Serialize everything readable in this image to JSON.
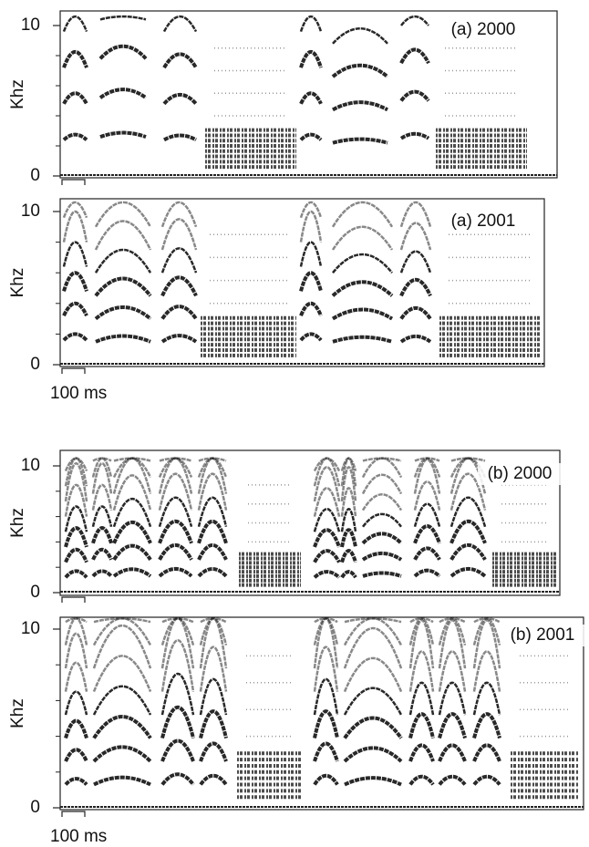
{
  "chart_data": [
    {
      "type": "spectrogram",
      "annotation": "(a) 2000",
      "ylabel": "Khz",
      "ylim": [
        0,
        10
      ],
      "yticks": [
        0,
        10
      ],
      "yminor": [
        2,
        4,
        6,
        8
      ]
    },
    {
      "type": "spectrogram",
      "annotation": "(a) 2001",
      "ylabel": "Khz",
      "ylim": [
        0,
        10
      ],
      "yticks": [
        0,
        10
      ],
      "yminor": [
        2,
        4,
        6,
        8
      ],
      "scale_label": "100 ms"
    },
    {
      "type": "spectrogram",
      "annotation": "(b) 2000",
      "ylabel": "Khz",
      "ylim": [
        0,
        10
      ],
      "yticks": [
        0,
        10
      ],
      "yminor": [
        2,
        4,
        6,
        8
      ]
    },
    {
      "type": "spectrogram",
      "annotation": "(b) 2001",
      "ylabel": "Khz",
      "ylim": [
        0,
        10
      ],
      "yticks": [
        0,
        10
      ],
      "yminor": [
        2,
        4,
        6,
        8
      ],
      "scale_label": "100 ms"
    }
  ]
}
